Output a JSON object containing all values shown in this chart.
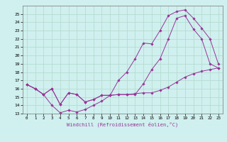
{
  "xlabel": "Windchill (Refroidissement éolien,°C)",
  "background_color": "#cff0ee",
  "grid_color": "#b0d8cc",
  "line_color": "#993399",
  "xlim": [
    -0.5,
    23.5
  ],
  "ylim": [
    13,
    26
  ],
  "yticks": [
    13,
    14,
    15,
    16,
    17,
    18,
    19,
    20,
    21,
    22,
    23,
    24,
    25
  ],
  "xticks": [
    0,
    1,
    2,
    3,
    4,
    5,
    6,
    7,
    8,
    9,
    10,
    11,
    12,
    13,
    14,
    15,
    16,
    17,
    18,
    19,
    20,
    21,
    22,
    23
  ],
  "line1_x": [
    0,
    1,
    2,
    3,
    4,
    5,
    6,
    7,
    8,
    9,
    10,
    11,
    12,
    13,
    14,
    15,
    16,
    17,
    18,
    19,
    20,
    21,
    22,
    23
  ],
  "line1_y": [
    16.5,
    16.0,
    15.3,
    16.0,
    14.1,
    15.5,
    15.3,
    14.4,
    14.7,
    15.2,
    15.2,
    15.3,
    15.3,
    15.3,
    16.6,
    18.3,
    19.6,
    22.0,
    24.5,
    24.8,
    23.2,
    22.0,
    19.0,
    18.5
  ],
  "line2_x": [
    0,
    1,
    2,
    3,
    4,
    5,
    6,
    7,
    8,
    9,
    10,
    11,
    12,
    13,
    14,
    15,
    16,
    17,
    18,
    19,
    20,
    21,
    22,
    23
  ],
  "line2_y": [
    16.5,
    16.0,
    15.3,
    14.0,
    13.1,
    13.4,
    13.2,
    13.5,
    14.0,
    14.5,
    15.2,
    15.3,
    15.3,
    15.4,
    15.5,
    15.5,
    15.8,
    16.2,
    16.8,
    17.4,
    17.8,
    18.1,
    18.3,
    18.5
  ],
  "line3_x": [
    0,
    1,
    2,
    3,
    4,
    5,
    6,
    7,
    8,
    9,
    10,
    11,
    12,
    13,
    14,
    15,
    16,
    17,
    18,
    19,
    20,
    21,
    22,
    23
  ],
  "line3_y": [
    16.5,
    16.0,
    15.3,
    16.0,
    14.1,
    15.5,
    15.3,
    14.4,
    14.7,
    15.2,
    15.2,
    17.0,
    18.0,
    19.6,
    21.5,
    21.4,
    23.0,
    24.8,
    25.3,
    25.5,
    24.5,
    23.3,
    22.0,
    19.0
  ]
}
